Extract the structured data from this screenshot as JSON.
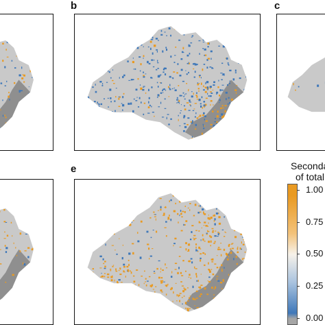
{
  "panels": [
    {
      "id": "a",
      "label": "",
      "dominant": "mixed"
    },
    {
      "id": "b",
      "label": "b",
      "dominant": "blue"
    },
    {
      "id": "c",
      "label": "c",
      "dominant": "mixed"
    },
    {
      "id": "d",
      "label": "",
      "dominant": "orange"
    },
    {
      "id": "e",
      "label": "e",
      "dominant": "orange"
    }
  ],
  "legend": {
    "title_line1": "Seconda",
    "title_line2": "of total",
    "ticks": [
      "1.00",
      "0.75",
      "0.50",
      "0.25",
      "0.00"
    ],
    "colors": {
      "high": "#e99a22",
      "mid": "#f7f2ea",
      "low": "#3f78b9",
      "zero": "#a6a6a6"
    }
  },
  "map_colors": {
    "land": "#c9c9c9",
    "nodata": "#8f8f8f",
    "blue": "#3f78b9",
    "orange": "#e99a22"
  }
}
